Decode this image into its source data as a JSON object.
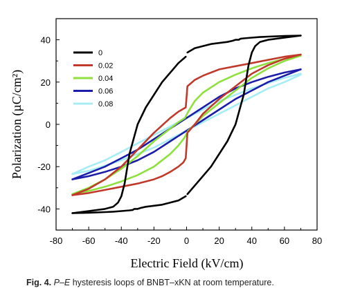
{
  "chart_data": {
    "type": "line",
    "title": "",
    "xlabel": "Electric Field (kV/cm)",
    "ylabel": "Polarization (µC/cm²)",
    "xlim": [
      -80,
      80
    ],
    "ylim": [
      -50,
      50
    ],
    "xticks": [
      -80,
      -60,
      -40,
      -20,
      0,
      20,
      40,
      60,
      80
    ],
    "yticks": [
      -40,
      -20,
      0,
      20,
      40
    ],
    "grid": false,
    "legend_position": "top-left",
    "series": [
      {
        "name": "0",
        "color": "#000000",
        "upper": {
          "x": [
            70,
            60,
            50,
            45,
            42,
            40,
            38,
            35,
            30,
            25,
            15,
            5,
            0.5
          ],
          "y": [
            42,
            41,
            40,
            39,
            37,
            34,
            28,
            14,
            0,
            -8,
            -20,
            -29,
            -33
          ]
        },
        "upper2": {
          "x": [
            -0.5,
            -5,
            -10,
            -15,
            -20,
            -25,
            -28,
            -30,
            -32,
            -33,
            -35,
            -40,
            -45,
            -50,
            -60,
            -70
          ],
          "y": [
            -34,
            -36,
            -37,
            -38,
            -38.5,
            -39,
            -39.5,
            -40,
            -40,
            -40.5,
            -40.7,
            -41,
            -41.3,
            -41.5,
            -41.8,
            -42
          ]
        },
        "lower": {
          "x": [
            -70,
            -60,
            -50,
            -45,
            -42,
            -40,
            -38,
            -35,
            -30,
            -25,
            -15,
            -5,
            -0.5
          ],
          "y": [
            -42,
            -41,
            -40,
            -39,
            -37,
            -34,
            -28,
            -14,
            0,
            8,
            20,
            29,
            32
          ]
        },
        "lower2": {
          "x": [
            0.5,
            5,
            10,
            15,
            20,
            25,
            28,
            30,
            32,
            33,
            35,
            40,
            45,
            50,
            60,
            70
          ],
          "y": [
            34,
            36,
            37,
            38,
            38.5,
            39,
            39.5,
            40,
            40,
            40.5,
            40.7,
            41,
            41.3,
            41.5,
            41.8,
            42
          ]
        }
      },
      {
        "name": "0.02",
        "color": "#c0392b",
        "upper": {
          "x": [
            70,
            60,
            50,
            40,
            30,
            20,
            15,
            10,
            5,
            2,
            0.5,
            -0.5,
            -5,
            -10,
            -20,
            -30,
            -40,
            -50,
            -60,
            -70
          ],
          "y": [
            33,
            32,
            30.5,
            29,
            27.5,
            26,
            24.5,
            23,
            21,
            19,
            18,
            8,
            6,
            3,
            -4,
            -12,
            -20,
            -26,
            -30.5,
            -33.5
          ]
        },
        "lower": {
          "x": [
            -70,
            -60,
            -50,
            -40,
            -30,
            -20,
            -15,
            -10,
            -5,
            -2,
            -0.5,
            0.5,
            5,
            10,
            20,
            30,
            40,
            50,
            60,
            70
          ],
          "y": [
            -33.5,
            -32.5,
            -31,
            -29.5,
            -28,
            -26,
            -24.5,
            -22.5,
            -20,
            -18,
            -16,
            -4,
            0,
            5,
            12,
            18,
            24,
            28,
            31,
            33
          ]
        }
      },
      {
        "name": "0.04",
        "color": "#8ee03c",
        "upper": {
          "x": [
            70,
            60,
            50,
            40,
            30,
            20,
            10,
            5,
            1,
            -1,
            -5,
            -10,
            -20,
            -30,
            -40,
            -50,
            -60,
            -70
          ],
          "y": [
            32.5,
            31,
            29,
            26.5,
            23.5,
            20,
            15,
            11,
            6,
            3,
            1,
            -2,
            -8,
            -15,
            -21,
            -26,
            -30,
            -33
          ]
        },
        "lower": {
          "x": [
            -70,
            -60,
            -50,
            -40,
            -30,
            -20,
            -10,
            -5,
            -1,
            1,
            5,
            10,
            20,
            30,
            40,
            50,
            60,
            70
          ],
          "y": [
            -33,
            -31.5,
            -29.5,
            -27,
            -24,
            -20,
            -14,
            -10,
            -6,
            -3,
            0,
            4,
            10,
            16,
            22,
            26.5,
            30,
            32.5
          ]
        }
      },
      {
        "name": "0.06",
        "color": "#1c1caa",
        "upper": {
          "x": [
            70,
            60,
            50,
            40,
            30,
            20,
            10,
            0,
            -10,
            -20,
            -30,
            -40,
            -50,
            -60,
            -70
          ],
          "y": [
            26,
            24.5,
            22.5,
            20,
            17,
            13,
            8,
            3,
            -2,
            -7,
            -12,
            -16,
            -20,
            -23,
            -26
          ]
        },
        "lower": {
          "x": [
            -70,
            -60,
            -50,
            -40,
            -30,
            -20,
            -10,
            0,
            10,
            20,
            30,
            40,
            50,
            60,
            70
          ],
          "y": [
            -26,
            -24.5,
            -22.5,
            -20,
            -17,
            -13,
            -8,
            -3,
            2,
            7,
            12,
            16,
            20,
            23,
            26
          ]
        }
      },
      {
        "name": "0.08",
        "color": "#a6ecf5",
        "upper": {
          "x": [
            70,
            60,
            50,
            40,
            30,
            20,
            10,
            0,
            -10,
            -20,
            -30,
            -40,
            -50,
            -60,
            -70
          ],
          "y": [
            24,
            22,
            19.5,
            17,
            14,
            11,
            7,
            3,
            -1,
            -5,
            -9,
            -13,
            -17,
            -20,
            -23.5
          ]
        },
        "lower": {
          "x": [
            -70,
            -60,
            -50,
            -40,
            -30,
            -20,
            -10,
            0,
            10,
            20,
            30,
            40,
            50,
            60,
            70
          ],
          "y": [
            -23.5,
            -22,
            -19.5,
            -17,
            -14,
            -11,
            -7,
            -3,
            1,
            5,
            9,
            13,
            17,
            20,
            23.5
          ]
        }
      }
    ]
  },
  "caption": {
    "label": "Fig. 4.",
    "italic": "P–E",
    "text": " hysteresis loops of BNBT–xKN at room temperature."
  }
}
